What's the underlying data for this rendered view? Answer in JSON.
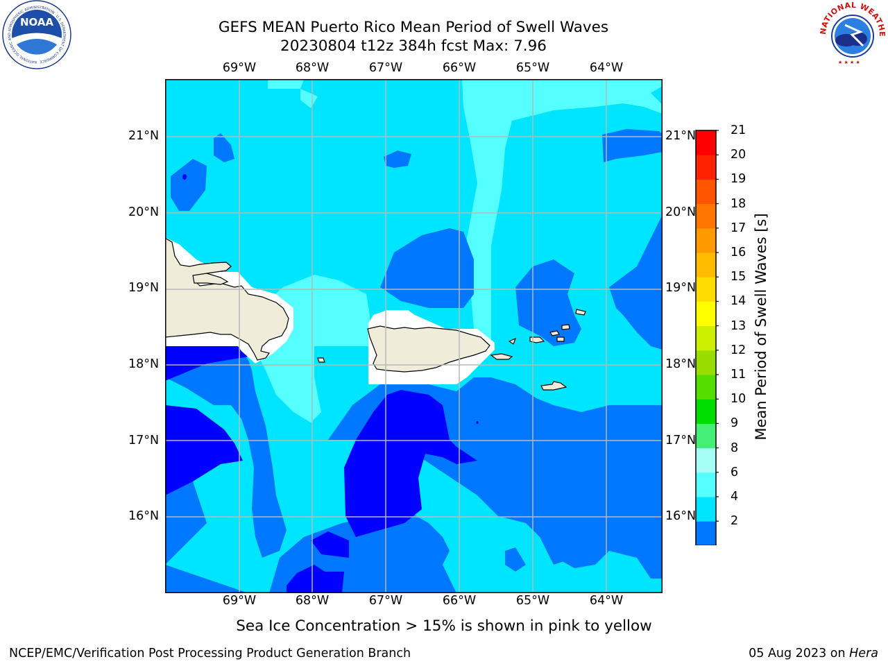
{
  "header": {
    "title_line1": "GEFS MEAN Puerto Rico Mean Period of Swell Waves",
    "title_line2": "20230804 t12z 384h fcst   Max: 7.96"
  },
  "logos": {
    "noaa_text": "NOAA",
    "noaa_ring_text": "NATIONAL OCEANIC AND ATMOSPHERIC ADMINISTRATION · U.S. DEPARTMENT OF COMMERCE",
    "nws_ring_text": "NATIONAL WEATHER SERVICE"
  },
  "map": {
    "lon_labels": [
      "69°W",
      "68°W",
      "67°W",
      "66°W",
      "65°W",
      "64°W"
    ],
    "lat_labels": [
      "21°N",
      "20°N",
      "19°N",
      "18°N",
      "17°N",
      "16°N"
    ]
  },
  "colorbar": {
    "title": "Mean Period of Swell Waves [s]",
    "ticks": [
      "21",
      "20",
      "19",
      "18",
      "17",
      "16",
      "15",
      "14",
      "13",
      "12",
      "11",
      "10",
      "9",
      "8",
      "6",
      "4",
      "2"
    ],
    "colors": [
      "#0000ff",
      "#0077ff",
      "#00e5ff",
      "#55ffff",
      "#a6fff7",
      "#44ee77",
      "#00dd00",
      "#55dd00",
      "#99dd00",
      "#ccee00",
      "#ffff00",
      "#ffdd00",
      "#ffbb00",
      "#ff9900",
      "#ff7700",
      "#ff5500",
      "#ff2200",
      "#ff0000"
    ]
  },
  "notes": {
    "sea_ice": "Sea Ice Concentration > 15% is shown in pink to yellow"
  },
  "footer": {
    "left": "NCEP/EMC/Verification Post Processing Product Generation Branch",
    "right_prefix": "05 Aug 2023 on ",
    "right_host": "Hera"
  }
}
